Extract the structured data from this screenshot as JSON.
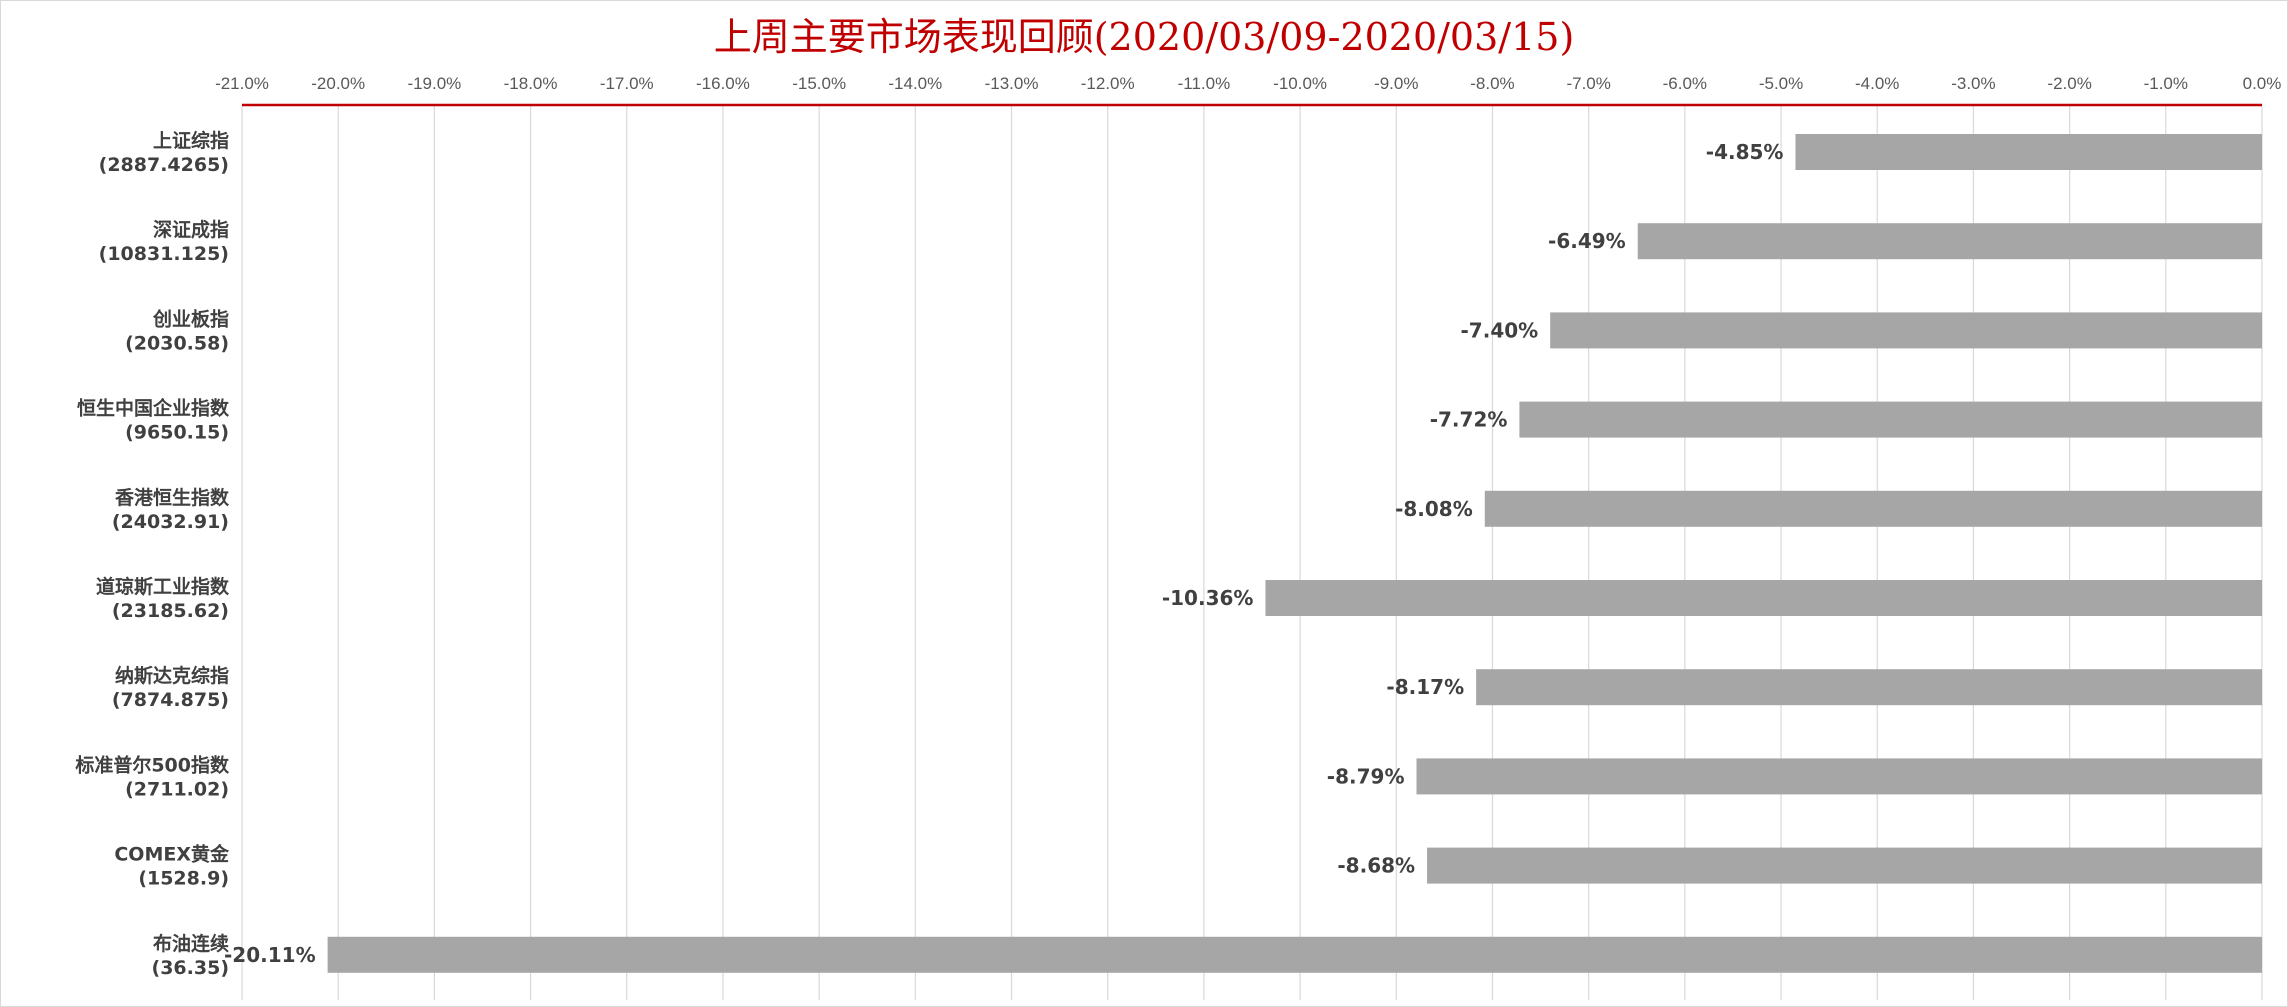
{
  "colors": {
    "title": "#c00000",
    "bar": "#a6a6a6",
    "grid": "#d9d9d9",
    "axis_line": "#c00000",
    "text": "#404040"
  },
  "chart_data": {
    "type": "bar",
    "orientation": "horizontal",
    "title": "上周主要市场表现回顾(2020/03/09-2020/03/15)",
    "xlabel": "",
    "ylabel": "",
    "xlim": [
      -21.0,
      0.0
    ],
    "x_axis_position": "top",
    "grid": true,
    "legend": "none",
    "tick_labels": [
      "-21.0%",
      "-20.0%",
      "-19.0%",
      "-18.0%",
      "-17.0%",
      "-16.0%",
      "-15.0%",
      "-14.0%",
      "-13.0%",
      "-12.0%",
      "-11.0%",
      "-10.0%",
      "-9.0%",
      "-8.0%",
      "-7.0%",
      "-6.0%",
      "-5.0%",
      "-4.0%",
      "-3.0%",
      "-2.0%",
      "-1.0%",
      "0.0%"
    ],
    "categories": [
      {
        "name": "上证综指",
        "sub": "(2887.4265)"
      },
      {
        "name": "深证成指",
        "sub": "(10831.125)"
      },
      {
        "name": "创业板指",
        "sub": "(2030.58)"
      },
      {
        "name": "恒生中国企业指数",
        "sub": "(9650.15)"
      },
      {
        "name": "香港恒生指数",
        "sub": "(24032.91)"
      },
      {
        "name": "道琼斯工业指数",
        "sub": "(23185.62)"
      },
      {
        "name": "纳斯达克综指",
        "sub": "(7874.875)"
      },
      {
        "name": "标准普尔500指数",
        "sub": "(2711.02)"
      },
      {
        "name": "COMEX黄金",
        "sub": "(1528.9)"
      },
      {
        "name": "布油连续",
        "sub": "(36.35)"
      }
    ],
    "values": [
      -4.85,
      -6.49,
      -7.4,
      -7.72,
      -8.08,
      -10.36,
      -8.17,
      -8.79,
      -8.68,
      -20.11
    ],
    "data_labels": [
      "-4.85%",
      "-6.49%",
      "-7.40%",
      "-7.72%",
      "-8.08%",
      "-10.36%",
      "-8.17%",
      "-8.79%",
      "-8.68%",
      "-20.11%"
    ]
  }
}
